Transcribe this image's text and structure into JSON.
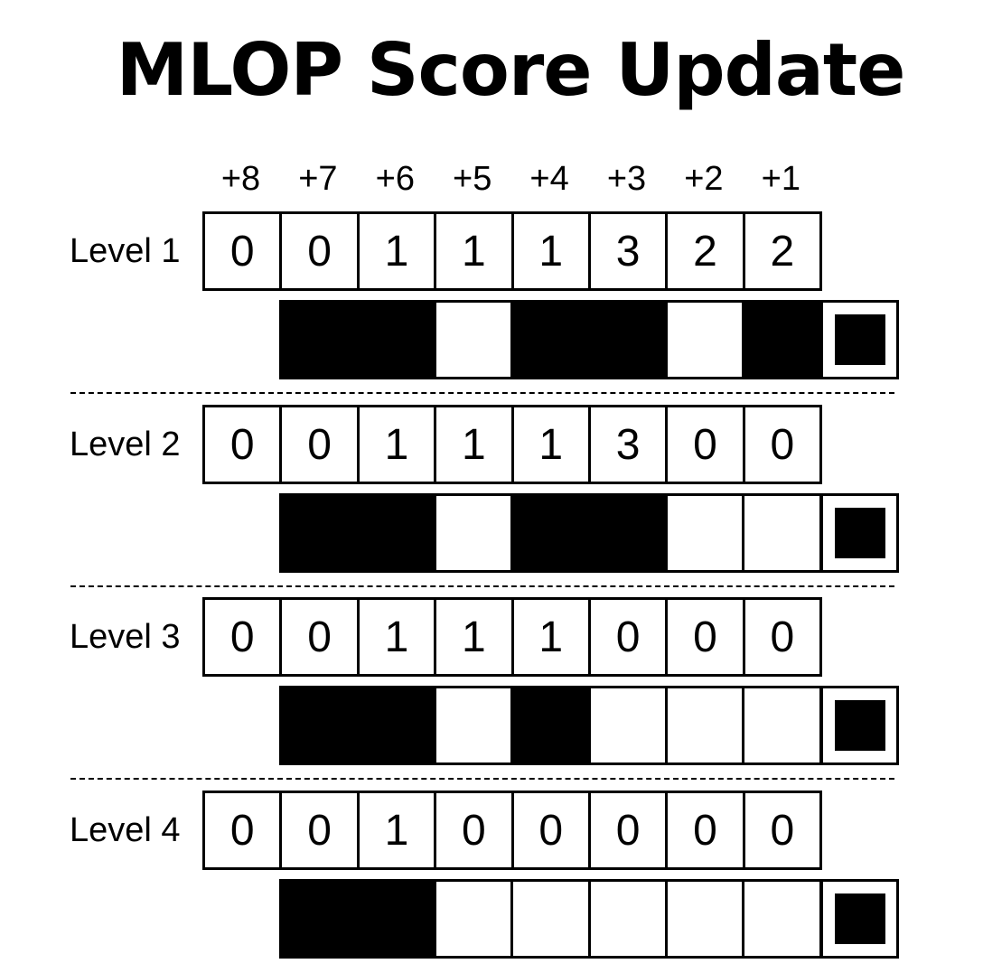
{
  "title": "MLOP Score Update",
  "offsets": [
    "+8",
    "+7",
    "+6",
    "+5",
    "+4",
    "+3",
    "+2",
    "+1"
  ],
  "levels": [
    {
      "label": "Level 1",
      "scores": [
        "0",
        "0",
        "1",
        "1",
        "1",
        "3",
        "2",
        "2"
      ],
      "bits": [
        1,
        1,
        0,
        1,
        1,
        0,
        1
      ]
    },
    {
      "label": "Level 2",
      "scores": [
        "0",
        "0",
        "1",
        "1",
        "1",
        "3",
        "0",
        "0"
      ],
      "bits": [
        1,
        1,
        0,
        1,
        1,
        0,
        0
      ]
    },
    {
      "label": "Level 3",
      "scores": [
        "0",
        "0",
        "1",
        "1",
        "1",
        "0",
        "0",
        "0"
      ],
      "bits": [
        1,
        1,
        0,
        1,
        0,
        0,
        0
      ]
    },
    {
      "label": "Level 4",
      "scores": [
        "0",
        "0",
        "1",
        "0",
        "0",
        "0",
        "0",
        "0"
      ],
      "bits": [
        1,
        1,
        0,
        0,
        0,
        0,
        0
      ]
    }
  ],
  "colors": {
    "filled": "#000000",
    "empty": "#ffffff"
  }
}
